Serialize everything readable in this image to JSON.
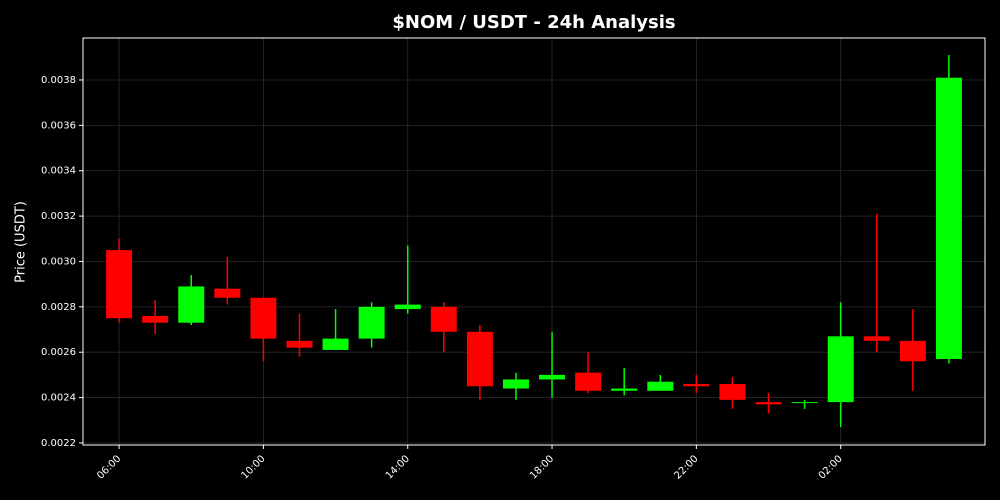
{
  "chart_data": {
    "type": "candlestick",
    "title": "$NOM / USDT - 24h Analysis",
    "y_label": "Price (USDT)",
    "categories": [
      "06:00",
      null,
      null,
      null,
      "10:00",
      null,
      null,
      null,
      "14:00",
      null,
      null,
      null,
      "18:00",
      null,
      null,
      null,
      "22:00",
      null,
      null,
      null,
      "02:00",
      null,
      null,
      null
    ],
    "open": [
      0.00305,
      0.00276,
      0.00273,
      0.00288,
      0.00284,
      0.00265,
      0.00261,
      0.00266,
      0.00279,
      0.0028,
      0.00269,
      0.00244,
      0.00248,
      0.00251,
      0.00243,
      0.00243,
      0.00246,
      0.00246,
      0.00238,
      0.002378,
      0.00238,
      0.00267,
      0.00265,
      0.00257
    ],
    "high": [
      0.0031,
      0.00283,
      0.00294,
      0.00302,
      0.00284,
      0.00277,
      0.00279,
      0.00282,
      0.00307,
      0.00282,
      0.00272,
      0.00251,
      0.00269,
      0.0026,
      0.00253,
      0.0025,
      0.0025,
      0.00249,
      0.00242,
      0.00239,
      0.00282,
      0.00321,
      0.00279,
      0.00391
    ],
    "low": [
      0.00273,
      0.00268,
      0.00272,
      0.00281,
      0.00256,
      0.00258,
      0.00261,
      0.00262,
      0.00277,
      0.0026,
      0.00239,
      0.00239,
      0.0024,
      0.00242,
      0.00241,
      0.00243,
      0.00242,
      0.00235,
      0.00233,
      0.00235,
      0.00227,
      0.0026,
      0.00243,
      0.00255
    ],
    "close": [
      0.00275,
      0.00273,
      0.00289,
      0.00284,
      0.00266,
      0.00262,
      0.00266,
      0.0028,
      0.00281,
      0.00269,
      0.00245,
      0.00248,
      0.0025,
      0.00243,
      0.00244,
      0.00247,
      0.00245,
      0.00239,
      0.00237,
      0.00238,
      0.00267,
      0.00265,
      0.00256,
      0.00381
    ],
    "up_color": "#00ff00",
    "down_color": "#ff0000",
    "ylim": [
      0.002191,
      0.003985
    ],
    "yticks": [
      0.0022,
      0.0024,
      0.0026,
      0.0028,
      {
        "value": 0.003,
        "label": "0.0030"
      },
      0.0032,
      0.0034,
      0.0036,
      0.0038
    ],
    "grid": true
  }
}
